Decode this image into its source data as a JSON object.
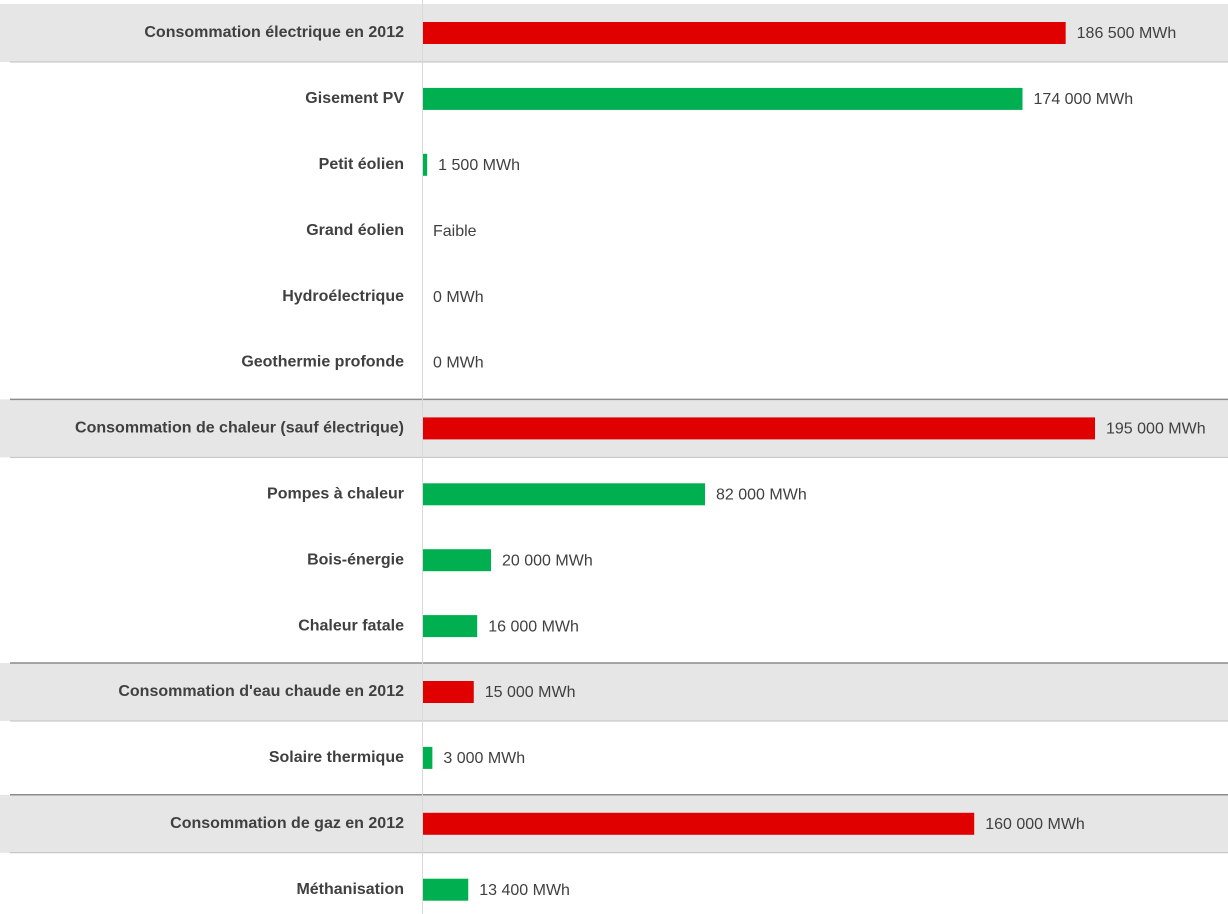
{
  "chart_data": {
    "type": "bar",
    "orientation": "horizontal",
    "categories": [
      "Consommation électrique en 2012",
      "Gisement PV",
      "Petit éolien",
      "Grand éolien",
      "Hydroélectrique",
      "Geothermie profonde",
      "Consommation de chaleur (sauf électrique)",
      "Pompes à chaleur",
      "Bois-énergie",
      "Chaleur fatale",
      "Consommation d'eau chaude en 2012",
      "Solaire thermique",
      "Consommation de gaz en 2012",
      "Méthanisation"
    ],
    "values": [
      186500,
      174000,
      1500,
      null,
      0,
      0,
      195000,
      82000,
      20000,
      16000,
      15000,
      3000,
      160000,
      13400
    ],
    "value_labels": [
      "186 500 MWh",
      "174 000 MWh",
      "1 500 MWh",
      "Faible",
      "0 MWh",
      "0 MWh",
      "195 000 MWh",
      "82 000 MWh",
      "20 000 MWh",
      "16 000 MWh",
      "15 000 MWh",
      "3 000 MWh",
      "160 000 MWh",
      "13 400 MWh"
    ],
    "colors": [
      "#e00000",
      "#00b050",
      "#00b050",
      "#00b050",
      "#00b050",
      "#00b050",
      "#e00000",
      "#00b050",
      "#00b050",
      "#00b050",
      "#e00000",
      "#00b050",
      "#e00000",
      "#00b050"
    ]
  }
}
